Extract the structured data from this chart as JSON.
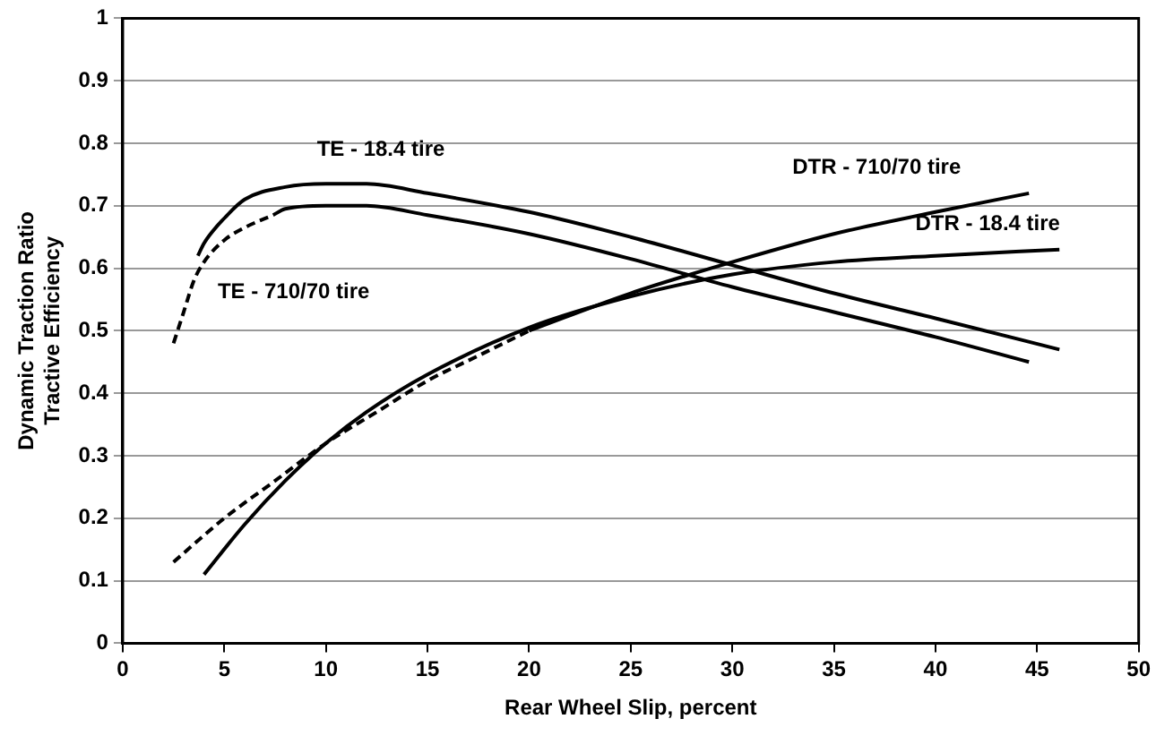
{
  "chart_data": {
    "type": "line",
    "xlabel": "Rear Wheel Slip, percent",
    "ylabel": "Dynamic Traction Ratio\nTractive Efficiency",
    "xlim": [
      0,
      50
    ],
    "xticks": [
      0,
      5,
      10,
      15,
      20,
      25,
      30,
      35,
      40,
      45,
      50
    ],
    "ylim": [
      0,
      1
    ],
    "yticks": [
      0,
      0.1,
      0.2,
      0.3,
      0.4,
      0.5,
      0.6,
      0.7,
      0.8,
      0.9,
      1
    ],
    "grid": "y",
    "legend": false,
    "marker": "none",
    "series": [
      {
        "name": "TE - 18.4 tire",
        "color": "#000000",
        "line_style": "solid",
        "x": [
          3.7,
          4,
          5,
          6,
          8,
          10,
          12,
          15,
          20,
          25,
          30,
          35,
          40,
          46.1
        ],
        "values": [
          0.62,
          0.64,
          0.68,
          0.71,
          0.73,
          0.735,
          0.735,
          0.72,
          0.69,
          0.65,
          0.605,
          0.56,
          0.52,
          0.47
        ]
      },
      {
        "name": "TE - 710/70 tire",
        "color": "#000000",
        "line_style": "dashed",
        "x": [
          2.5,
          3,
          3.5,
          4,
          5,
          6,
          7.4
        ],
        "values": [
          0.48,
          0.53,
          0.58,
          0.61,
          0.645,
          0.665,
          0.685
        ]
      },
      {
        "color": "#000000",
        "line_style": "solid",
        "x": [
          7.4,
          8,
          10,
          12,
          15,
          20,
          25,
          30,
          35,
          40,
          44.6
        ],
        "values": [
          0.685,
          0.695,
          0.7,
          0.7,
          0.685,
          0.655,
          0.615,
          0.57,
          0.53,
          0.49,
          0.45
        ]
      },
      {
        "color": "#000000",
        "line_style": "dashed",
        "x": [
          2.5,
          5,
          7.5,
          10,
          12.5,
          15,
          17.5,
          20
        ],
        "values": [
          0.13,
          0.2,
          0.26,
          0.32,
          0.37,
          0.42,
          0.46,
          0.5
        ]
      },
      {
        "name": "DTR - 710/70 tire",
        "color": "#000000",
        "line_style": "solid",
        "x": [
          20,
          25,
          30,
          35,
          40,
          44.6
        ],
        "values": [
          0.5,
          0.56,
          0.61,
          0.655,
          0.69,
          0.72
        ]
      },
      {
        "name": "DTR - 18.4 tire",
        "color": "#000000",
        "line_style": "solid",
        "x": [
          4,
          6,
          8,
          10,
          12,
          15,
          20,
          25,
          30,
          35,
          40,
          46.1
        ],
        "values": [
          0.11,
          0.19,
          0.26,
          0.32,
          0.37,
          0.43,
          0.505,
          0.555,
          0.59,
          0.61,
          0.62,
          0.63
        ]
      }
    ]
  }
}
